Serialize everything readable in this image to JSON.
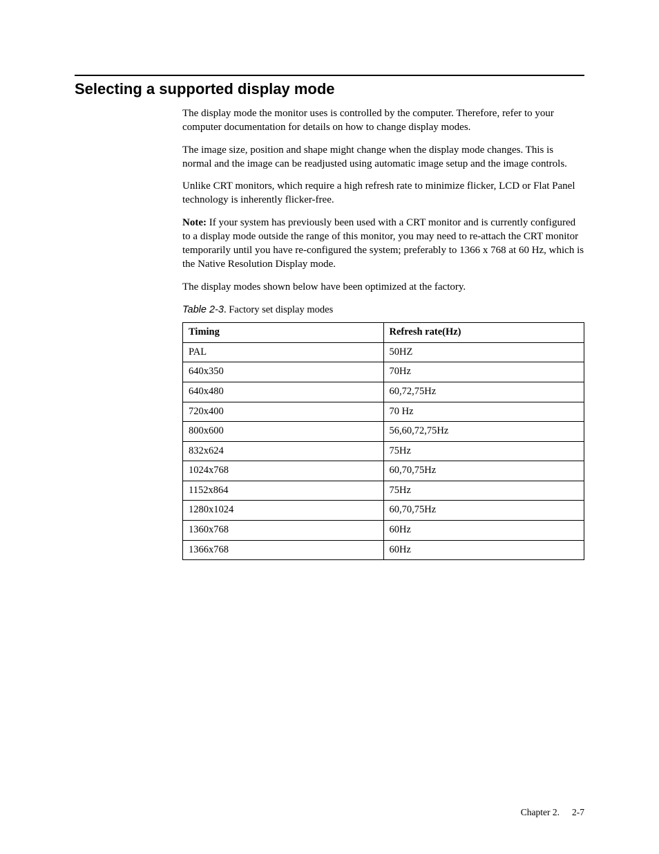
{
  "section": {
    "title": "Selecting a supported display mode",
    "paragraphs": {
      "p1": "The display mode the monitor uses is controlled by the computer. Therefore, refer to your computer documentation for details on how to change display modes.",
      "p2": "The image size, position and shape might change when the display mode changes. This is normal and the image can be readjusted using automatic image setup and the image controls.",
      "p3": "Unlike CRT monitors, which require a high refresh rate to minimize flicker, LCD or Flat Panel technology is inherently flicker-free.",
      "note_label": "Note:",
      "note_body": "  If your system has previously been used with a CRT monitor and is currently configured to a display mode outside the range of this monitor, you may need to re-attach the CRT monitor temporarily until you have re-configured the system; preferably to 1366 x 768 at 60 Hz, which is the Native Resolution Display mode.",
      "p5": "The display modes shown below have been optimized at the factory."
    },
    "table": {
      "caption_id": "Table 2-3",
      "caption_text": ". Factory set display modes",
      "columns": [
        "Timing",
        "Refresh rate(Hz)"
      ],
      "rows": [
        [
          "PAL",
          "50HZ"
        ],
        [
          "640x350",
          "70Hz"
        ],
        [
          "640x480",
          "60,72,75Hz"
        ],
        [
          "720x400",
          "70 Hz"
        ],
        [
          "800x600",
          "56,60,72,75Hz"
        ],
        [
          "832x624",
          "75Hz"
        ],
        [
          "1024x768",
          "60,70,75Hz"
        ],
        [
          "1152x864",
          "75Hz"
        ],
        [
          "1280x1024",
          "60,70,75Hz"
        ],
        [
          "1360x768",
          "60Hz"
        ],
        [
          "1366x768",
          "60Hz"
        ]
      ]
    }
  },
  "footer": {
    "chapter": "Chapter 2.",
    "page": "2-7"
  }
}
